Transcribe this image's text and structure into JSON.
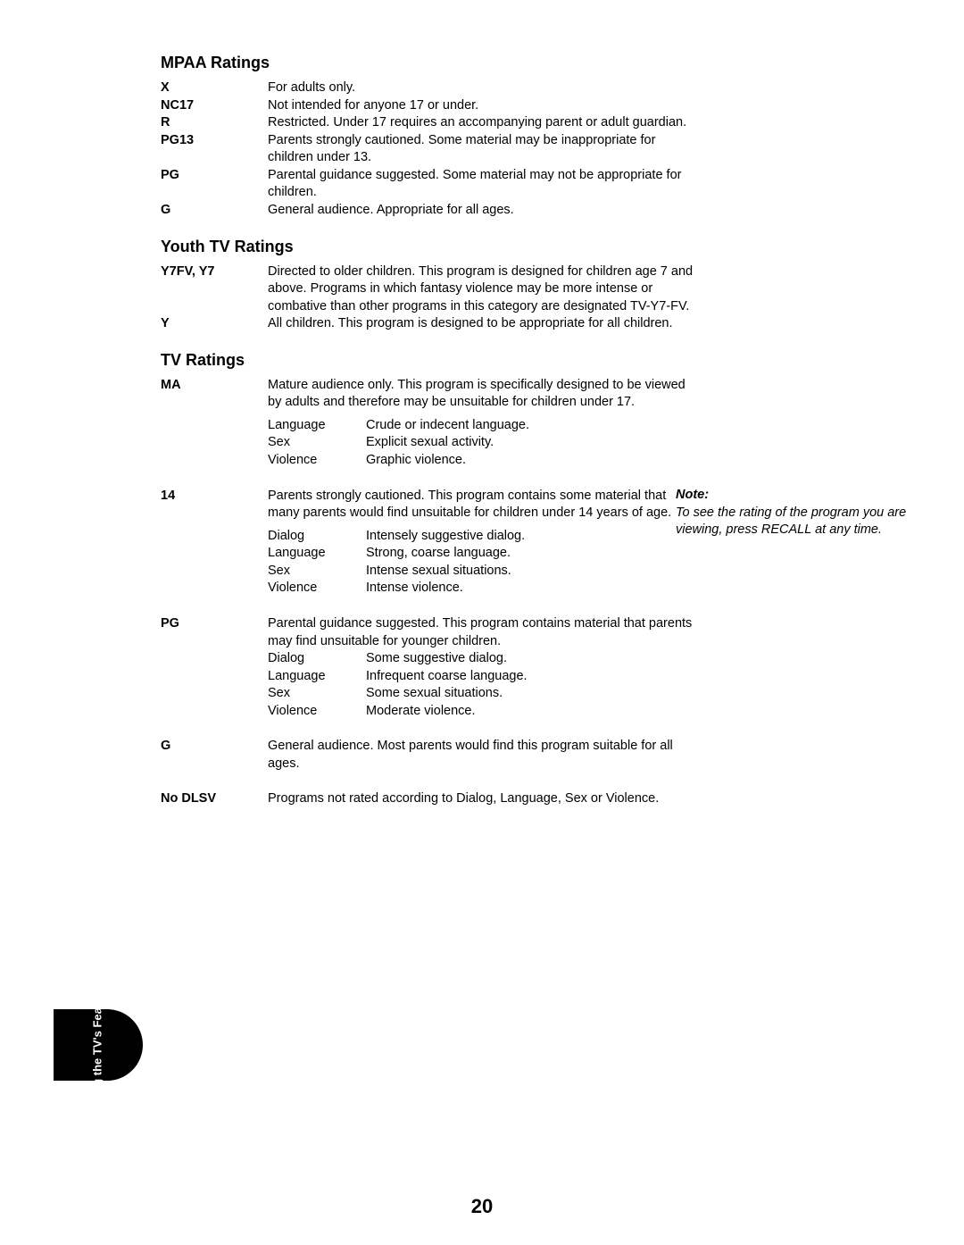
{
  "pageNumber": "20",
  "sidebarLabel": "Using the TV's\nFeatures",
  "note": {
    "heading": "Note:",
    "body": "To see the rating of the program you are viewing, press RECALL at any time."
  },
  "sections": [
    {
      "title": "MPAA Ratings",
      "items": [
        {
          "code": "X",
          "desc": "For adults only."
        },
        {
          "code": "NC17",
          "desc": "Not intended for anyone 17 or under."
        },
        {
          "code": "R",
          "desc": "Restricted. Under 17 requires an accompanying parent or adult guardian."
        },
        {
          "code": "PG13",
          "desc": "Parents strongly cautioned. Some material may be inappropriate for children under 13."
        },
        {
          "code": "PG",
          "desc": "Parental guidance suggested. Some material may not be appropriate for children."
        },
        {
          "code": "G",
          "desc": "General audience. Appropriate for all ages."
        }
      ]
    },
    {
      "title": "Youth TV Ratings",
      "items": [
        {
          "code": "Y7FV, Y7",
          "desc": "Directed to older children. This program is designed for children age 7 and above. Programs in which fantasy violence may be more intense or combative than other programs in this category are designated TV-Y7-FV."
        },
        {
          "code": "Y",
          "desc": "All children. This program is designed to be appropriate for all children."
        }
      ]
    },
    {
      "title": "TV Ratings",
      "items": [
        {
          "code": "MA",
          "desc": "Mature audience only. This program is specifically designed to be viewed by adults and therefore may be unsuitable for children under 17.",
          "sub": [
            {
              "label": "Language",
              "value": "Crude or indecent language."
            },
            {
              "label": "Sex",
              "value": "Explicit sexual activity."
            },
            {
              "label": "Violence",
              "value": "Graphic violence."
            }
          ]
        },
        {
          "code": "14",
          "desc": "Parents strongly cautioned. This program contains some material that many parents would find unsuitable for children under 14 years of age.",
          "sub": [
            {
              "label": "Dialog",
              "value": "Intensely suggestive dialog."
            },
            {
              "label": "Language",
              "value": "Strong, coarse language."
            },
            {
              "label": "Sex",
              "value": "Intense sexual situations."
            },
            {
              "label": "Violence",
              "value": "Intense violence."
            }
          ]
        },
        {
          "code": "PG",
          "desc": "Parental guidance suggested. This program contains material that parents may find unsuitable for younger children.",
          "sub": [
            {
              "label": "Dialog",
              "value": "Some suggestive dialog."
            },
            {
              "label": "Language",
              "value": "Infrequent coarse language."
            },
            {
              "label": "Sex",
              "value": "Some sexual situations."
            },
            {
              "label": "Violence",
              "value": "Moderate violence."
            }
          ]
        },
        {
          "code": "G",
          "desc": "General audience. Most parents would find this program suitable for all ages."
        },
        {
          "code": "No DLSV",
          "desc": "Programs not rated according to Dialog, Language, Sex or Violence."
        }
      ]
    }
  ]
}
